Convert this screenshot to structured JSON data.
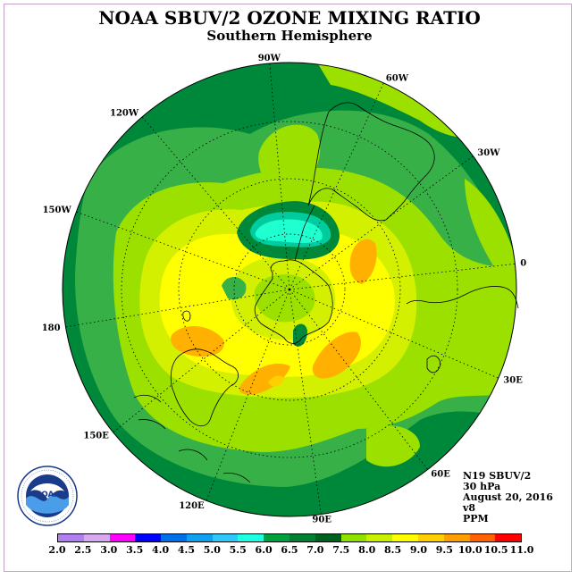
{
  "header": {
    "title": "NOAA SBUV/2 OZONE MIXING RATIO",
    "subtitle": "Southern Hemisphere"
  },
  "map": {
    "projection": "polar-stereographic-south",
    "longitude_labels": [
      "90W",
      "60W",
      "30W",
      "0",
      "30E",
      "60E",
      "90E",
      "120E",
      "150E",
      "180",
      "150W",
      "120W"
    ],
    "palette": {
      "dark_green": "#00883a",
      "mid_green": "#38b048",
      "green": "#5ac850",
      "lime": "#9ce000",
      "yellow_green": "#d2f000",
      "yellow": "#ffff00",
      "light_orange": "#ffd000",
      "orange": "#ffb000",
      "cyan": "#20ffd0",
      "teal": "#00cca0"
    }
  },
  "info": {
    "satellite": "N19 SBUV/2",
    "level": "30 hPa",
    "date": "August 20, 2016",
    "version": "v8",
    "units": "PPM"
  },
  "logo": {
    "text": "NOAA",
    "ring_text": "NATIONAL OCEANIC AND ATMOSPHERIC ADMINISTRATION · U.S. DEPARTMENT OF COMMERCE"
  },
  "colorbar": {
    "labels": [
      "2.0",
      "2.5",
      "3.0",
      "3.5",
      "4.0",
      "4.5",
      "5.0",
      "5.5",
      "6.0",
      "6.5",
      "7.0",
      "7.5",
      "8.0",
      "8.5",
      "9.0",
      "9.5",
      "10.0",
      "10.5",
      "11.0"
    ],
    "colors": [
      "#b080f0",
      "#d8a8f0",
      "#ff00ff",
      "#0000ff",
      "#0070e8",
      "#10a0f0",
      "#30c8f8",
      "#20ffe0",
      "#00a040",
      "#008030",
      "#006020",
      "#90e000",
      "#c8f000",
      "#ffff00",
      "#ffd000",
      "#ffa000",
      "#ff6000",
      "#ff0000",
      "#a06030"
    ]
  }
}
